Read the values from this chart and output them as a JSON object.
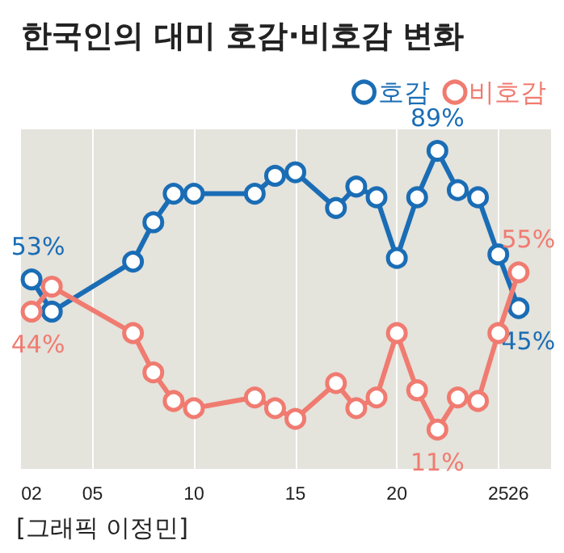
{
  "chart_data": {
    "type": "line",
    "title": "한국인의 대미 호감·비호감 변화",
    "x": [
      2002,
      2003,
      2007,
      2008,
      2009,
      2010,
      2013,
      2014,
      2015,
      2017,
      2018,
      2019,
      2020,
      2021,
      2022,
      2023,
      2024,
      2025,
      2026
    ],
    "series": [
      {
        "name": "호감",
        "color": "#1a6db5",
        "values": [
          53,
          44,
          58,
          69,
          77,
          77,
          77,
          82,
          83,
          73,
          79,
          76,
          59,
          76,
          89,
          78,
          76,
          60,
          45
        ],
        "value_labels": [
          "53%",
          null,
          null,
          null,
          null,
          null,
          null,
          null,
          null,
          null,
          null,
          null,
          null,
          null,
          "89%",
          null,
          null,
          null,
          "45%"
        ]
      },
      {
        "name": "비호감",
        "color": "#f07b70",
        "values": [
          44,
          51,
          38,
          27,
          19,
          17,
          20,
          17,
          14,
          24,
          17,
          20,
          38,
          22,
          11,
          20,
          19,
          38,
          55
        ],
        "value_labels": [
          "44%",
          null,
          null,
          null,
          null,
          null,
          null,
          null,
          null,
          null,
          null,
          null,
          null,
          null,
          "11%",
          null,
          null,
          null,
          "55%"
        ]
      }
    ],
    "xlim": [
      2001.4,
      2027.6
    ],
    "xticks": [
      {
        "value": 2002,
        "label": "02"
      },
      {
        "value": 2005,
        "label": "05"
      },
      {
        "value": 2010,
        "label": "10"
      },
      {
        "value": 2015,
        "label": "15"
      },
      {
        "value": 2020,
        "label": "20"
      },
      {
        "value": 2025,
        "label": "25"
      },
      {
        "value": 2026,
        "label": "26"
      }
    ],
    "ylim": [
      0,
      95
    ],
    "tick_labels": "x",
    "grid": "x",
    "legend": "top right",
    "marker": "circle",
    "line_style": "solid",
    "annotations": [
      "[그래픽 이정민]"
    ]
  }
}
